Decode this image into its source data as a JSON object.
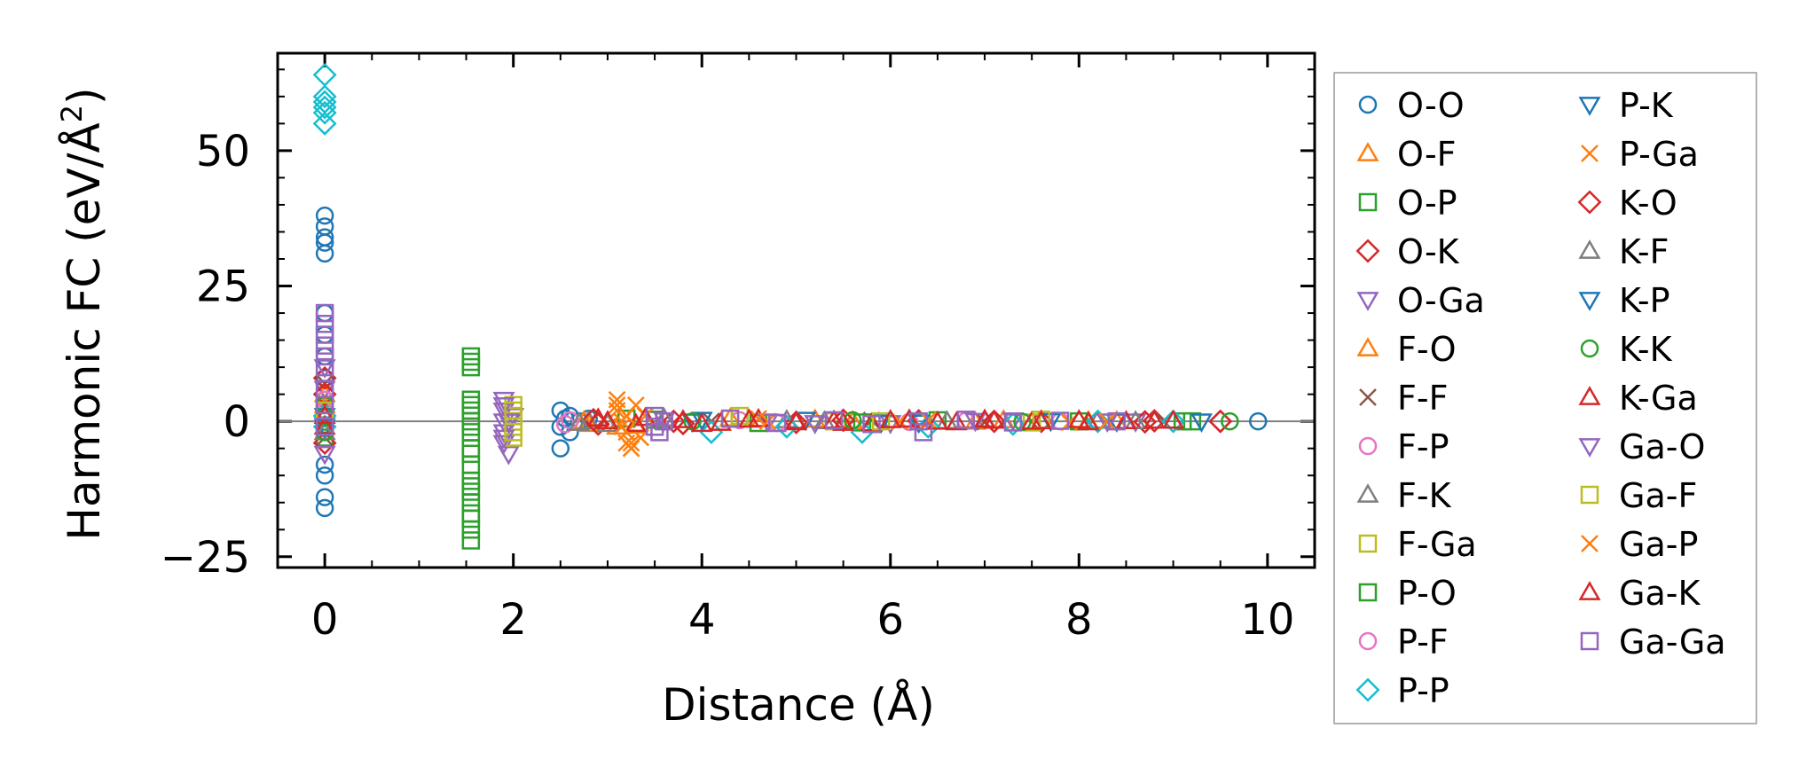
{
  "chart_data": {
    "type": "scatter",
    "xlabel": "Distance (Å)",
    "ylabel_main": "Harmonic FC (eV/Å",
    "ylabel_sup": "2",
    "ylabel_close": ")",
    "xlim": [
      -0.5,
      10.5
    ],
    "ylim": [
      -27,
      68
    ],
    "xticks": [
      0,
      2,
      4,
      6,
      8,
      10
    ],
    "xtick_labels": [
      "0",
      "2",
      "4",
      "6",
      "8",
      "10"
    ],
    "yticks": [
      -25,
      0,
      25,
      50
    ],
    "ytick_labels": [
      "−25",
      "0",
      "25",
      "50"
    ],
    "x_minor_step": 0.5,
    "y_minor_step": 5,
    "zero_line": true,
    "grid": false,
    "legend_position": "outside-right",
    "legend_columns": 2,
    "series": [
      {
        "name": "O-O",
        "marker": "circle",
        "color": "#1f77b4",
        "points": [
          [
            0,
            38
          ],
          [
            0,
            36
          ],
          [
            0,
            34
          ],
          [
            0,
            33
          ],
          [
            0,
            31
          ],
          [
            0,
            20
          ],
          [
            0,
            16
          ],
          [
            0,
            12
          ],
          [
            0,
            8
          ],
          [
            0,
            4
          ],
          [
            0,
            1
          ],
          [
            0,
            -1
          ],
          [
            0,
            -8
          ],
          [
            0,
            -10
          ],
          [
            0,
            -14
          ],
          [
            0,
            -16
          ],
          [
            2.5,
            2
          ],
          [
            2.5,
            -1
          ],
          [
            2.5,
            -5
          ],
          [
            2.55,
            0.5
          ],
          [
            2.6,
            1
          ],
          [
            2.6,
            -2
          ],
          [
            2.7,
            0
          ],
          [
            2.8,
            0.5
          ],
          [
            9.9,
            0
          ]
        ]
      },
      {
        "name": "O-F",
        "marker": "triangle-up",
        "color": "#ff7f0e",
        "points": [
          [
            0,
            5
          ],
          [
            0,
            -2
          ],
          [
            2.8,
            -0.5
          ],
          [
            3.1,
            -1
          ],
          [
            4.3,
            0.5
          ],
          [
            5.6,
            0
          ],
          [
            7.2,
            0.2
          ],
          [
            8.4,
            0
          ]
        ]
      },
      {
        "name": "O-P",
        "marker": "square",
        "color": "#2ca02c",
        "points": [
          [
            0,
            2
          ],
          [
            0,
            -3
          ],
          [
            1.55,
            12
          ],
          [
            1.55,
            11
          ],
          [
            1.55,
            4
          ],
          [
            1.55,
            2
          ],
          [
            1.55,
            0
          ],
          [
            1.55,
            -2
          ],
          [
            1.55,
            -5
          ],
          [
            1.55,
            -8
          ],
          [
            1.55,
            -11
          ],
          [
            1.55,
            -13
          ],
          [
            1.55,
            -15
          ],
          [
            1.55,
            -18
          ],
          [
            1.55,
            -20
          ],
          [
            1.55,
            -22
          ],
          [
            3.2,
            0.5
          ],
          [
            4.6,
            -0.3
          ],
          [
            6.5,
            0.2
          ],
          [
            9.1,
            0
          ]
        ]
      },
      {
        "name": "O-K",
        "marker": "diamond",
        "color": "#d62728",
        "points": [
          [
            0,
            8
          ],
          [
            0,
            -4
          ],
          [
            2.9,
            -0.5
          ],
          [
            3.7,
            0
          ],
          [
            5.0,
            -0.2
          ],
          [
            6.3,
            0.1
          ],
          [
            7.6,
            0
          ],
          [
            8.8,
            0.1
          ],
          [
            9.5,
            0
          ]
        ]
      },
      {
        "name": "O-Ga",
        "marker": "triangle-down",
        "color": "#9467bd",
        "points": [
          [
            0,
            6
          ],
          [
            0,
            -6
          ],
          [
            1.9,
            4
          ],
          [
            1.9,
            2
          ],
          [
            1.9,
            0
          ],
          [
            1.9,
            -2
          ],
          [
            1.9,
            -4
          ],
          [
            1.95,
            -6
          ],
          [
            2.0,
            1
          ],
          [
            3.5,
            0.5
          ],
          [
            4.7,
            0
          ],
          [
            6.0,
            -0.3
          ],
          [
            7.3,
            0.2
          ],
          [
            8.6,
            0
          ]
        ]
      },
      {
        "name": "F-O",
        "marker": "triangle-up",
        "color": "#ff7f0e",
        "points": [
          [
            0,
            3
          ],
          [
            2.75,
            0
          ],
          [
            3.3,
            -0.8
          ],
          [
            5.2,
            0.3
          ],
          [
            6.9,
            -0.1
          ],
          [
            8.1,
            0
          ]
        ]
      },
      {
        "name": "F-F",
        "marker": "x",
        "color": "#8c564b",
        "points": [
          [
            0,
            7
          ],
          [
            0,
            -3
          ],
          [
            4.1,
            0
          ],
          [
            5.8,
            0.2
          ],
          [
            7.0,
            -0.1
          ],
          [
            8.9,
            0
          ]
        ]
      },
      {
        "name": "F-P",
        "marker": "circle",
        "color": "#e377c2",
        "points": [
          [
            0,
            4
          ],
          [
            2.55,
            -0.5
          ],
          [
            4.4,
            0.2
          ],
          [
            6.2,
            -0.1
          ],
          [
            7.8,
            0
          ]
        ]
      },
      {
        "name": "F-K",
        "marker": "triangle-up",
        "color": "#7f7f7f",
        "points": [
          [
            0,
            2
          ],
          [
            2.8,
            0
          ],
          [
            3.0,
            -0.5
          ],
          [
            4.9,
            0.2
          ],
          [
            6.6,
            0
          ],
          [
            8.2,
            0.1
          ]
        ]
      },
      {
        "name": "F-Ga",
        "marker": "square",
        "color": "#bcbd22",
        "points": [
          [
            0,
            1
          ],
          [
            2.0,
            3
          ],
          [
            2.0,
            1
          ],
          [
            2.0,
            -1
          ],
          [
            2.0,
            -3
          ],
          [
            4.3,
            0.5
          ],
          [
            5.4,
            0
          ],
          [
            7.5,
            -0.2
          ]
        ]
      },
      {
        "name": "P-O",
        "marker": "square",
        "color": "#2ca02c",
        "points": [
          [
            0,
            3
          ],
          [
            1.55,
            10
          ],
          [
            1.55,
            3
          ],
          [
            1.55,
            -1
          ],
          [
            1.55,
            -6
          ],
          [
            1.55,
            -12
          ],
          [
            1.55,
            -17
          ],
          [
            3.5,
            0.3
          ],
          [
            5.7,
            -0.2
          ],
          [
            8.0,
            0
          ],
          [
            9.2,
            0
          ]
        ]
      },
      {
        "name": "P-F",
        "marker": "circle",
        "color": "#e377c2",
        "points": [
          [
            0,
            2
          ],
          [
            2.6,
            0.2
          ],
          [
            4.8,
            -0.3
          ],
          [
            6.8,
            0.1
          ]
        ]
      },
      {
        "name": "P-P",
        "marker": "diamond",
        "color": "#17becf",
        "points": [
          [
            0,
            64
          ],
          [
            0,
            60
          ],
          [
            0,
            59
          ],
          [
            0,
            58
          ],
          [
            0,
            57
          ],
          [
            0,
            55
          ],
          [
            0,
            1
          ],
          [
            0,
            -1
          ],
          [
            4.1,
            -2
          ],
          [
            4.9,
            -1
          ],
          [
            5.7,
            -2
          ],
          [
            6.4,
            -1
          ],
          [
            7.3,
            -0.5
          ],
          [
            8.2,
            0
          ],
          [
            9.0,
            0
          ]
        ]
      },
      {
        "name": "P-K",
        "marker": "triangle-down",
        "color": "#1f77b4",
        "points": [
          [
            0,
            -1
          ],
          [
            3.9,
            0
          ],
          [
            5.1,
            0.3
          ],
          [
            6.3,
            -0.2
          ],
          [
            8.4,
            0
          ]
        ]
      },
      {
        "name": "P-Ga",
        "marker": "x",
        "color": "#ff7f0e",
        "points": [
          [
            3.1,
            4
          ],
          [
            3.1,
            2
          ],
          [
            3.15,
            0
          ],
          [
            3.2,
            -2
          ],
          [
            3.2,
            -4
          ],
          [
            3.25,
            -5
          ],
          [
            3.3,
            3
          ],
          [
            3.35,
            -3
          ],
          [
            3.4,
            1
          ],
          [
            4.6,
            0.5
          ],
          [
            6.1,
            0
          ],
          [
            7.9,
            -0.2
          ]
        ]
      },
      {
        "name": "K-O",
        "marker": "diamond",
        "color": "#d62728",
        "points": [
          [
            0,
            5
          ],
          [
            2.85,
            0.3
          ],
          [
            3.8,
            -0.4
          ],
          [
            5.5,
            0.2
          ],
          [
            7.1,
            0
          ],
          [
            8.7,
            -0.1
          ],
          [
            9.5,
            0
          ]
        ]
      },
      {
        "name": "K-F",
        "marker": "triangle-up",
        "color": "#7f7f7f",
        "points": [
          [
            0,
            -2
          ],
          [
            2.7,
            -0.3
          ],
          [
            3.6,
            0.5
          ],
          [
            5.3,
            0
          ],
          [
            7.0,
            0.2
          ],
          [
            8.6,
            0
          ]
        ]
      },
      {
        "name": "K-P",
        "marker": "triangle-down",
        "color": "#1f77b4",
        "points": [
          [
            0,
            1
          ],
          [
            4.0,
            0.3
          ],
          [
            5.9,
            -0.2
          ],
          [
            7.7,
            0.1
          ],
          [
            9.3,
            0
          ]
        ]
      },
      {
        "name": "K-K",
        "marker": "circle",
        "color": "#2ca02c",
        "points": [
          [
            0,
            3
          ],
          [
            0,
            -2
          ],
          [
            3.9,
            0
          ],
          [
            5.6,
            0.2
          ],
          [
            7.4,
            -0.1
          ],
          [
            9.6,
            0
          ]
        ]
      },
      {
        "name": "K-Ga",
        "marker": "triangle-up",
        "color": "#d62728",
        "points": [
          [
            0,
            1
          ],
          [
            2.9,
            0.5
          ],
          [
            3.3,
            -0.5
          ],
          [
            3.8,
            0.2
          ],
          [
            4.2,
            -0.3
          ],
          [
            4.6,
            0.4
          ],
          [
            5.0,
            -0.2
          ],
          [
            5.4,
            0.1
          ],
          [
            5.8,
            -0.4
          ],
          [
            6.2,
            0.3
          ],
          [
            6.7,
            -0.2
          ],
          [
            7.1,
            0.1
          ],
          [
            7.5,
            -0.1
          ],
          [
            8.0,
            0.2
          ],
          [
            8.5,
            0
          ],
          [
            9.0,
            0.1
          ]
        ]
      },
      {
        "name": "Ga-O",
        "marker": "triangle-down",
        "color": "#9467bd",
        "points": [
          [
            0,
            10
          ],
          [
            1.9,
            3
          ],
          [
            1.9,
            -3
          ],
          [
            1.95,
            0
          ],
          [
            3.6,
            0.2
          ],
          [
            5.2,
            -0.3
          ],
          [
            6.9,
            0.1
          ],
          [
            8.3,
            0
          ]
        ]
      },
      {
        "name": "Ga-F",
        "marker": "square",
        "color": "#bcbd22",
        "points": [
          [
            0,
            2
          ],
          [
            2.0,
            2
          ],
          [
            2.0,
            -2
          ],
          [
            4.4,
            1
          ],
          [
            5.9,
            0
          ],
          [
            7.6,
            0.3
          ]
        ]
      },
      {
        "name": "Ga-P",
        "marker": "x",
        "color": "#ff7f0e",
        "points": [
          [
            3.1,
            3
          ],
          [
            3.15,
            -1
          ],
          [
            3.2,
            1
          ],
          [
            3.25,
            -4
          ],
          [
            4.7,
            0
          ],
          [
            6.4,
            0.2
          ],
          [
            8.3,
            0
          ]
        ]
      },
      {
        "name": "Ga-K",
        "marker": "triangle-up",
        "color": "#d62728",
        "points": [
          [
            0,
            -1
          ],
          [
            3.0,
            0
          ],
          [
            3.4,
            0.6
          ],
          [
            4.0,
            -0.5
          ],
          [
            4.5,
            0.3
          ],
          [
            5.0,
            0
          ],
          [
            5.5,
            -0.3
          ],
          [
            6.0,
            0.2
          ],
          [
            6.5,
            -0.1
          ],
          [
            7.0,
            0.3
          ],
          [
            7.6,
            0
          ],
          [
            8.1,
            -0.2
          ],
          [
            8.8,
            0.1
          ]
        ]
      },
      {
        "name": "Ga-Ga",
        "marker": "square",
        "color": "#9467bd",
        "points": [
          [
            0,
            20
          ],
          [
            0,
            18
          ],
          [
            0,
            16
          ],
          [
            0,
            14
          ],
          [
            0,
            12
          ],
          [
            0,
            10
          ],
          [
            0,
            6
          ],
          [
            0,
            3
          ],
          [
            0,
            -1
          ],
          [
            3.5,
            1
          ],
          [
            3.5,
            -1
          ],
          [
            3.55,
            -2
          ],
          [
            3.6,
            0
          ],
          [
            4.3,
            0.5
          ],
          [
            4.8,
            -0.3
          ],
          [
            5.4,
            0.2
          ],
          [
            5.8,
            -0.5
          ],
          [
            6.3,
            0
          ],
          [
            6.35,
            -2
          ],
          [
            6.8,
            0.3
          ],
          [
            7.3,
            -0.2
          ],
          [
            7.8,
            0.1
          ],
          [
            8.4,
            0
          ]
        ]
      }
    ]
  }
}
